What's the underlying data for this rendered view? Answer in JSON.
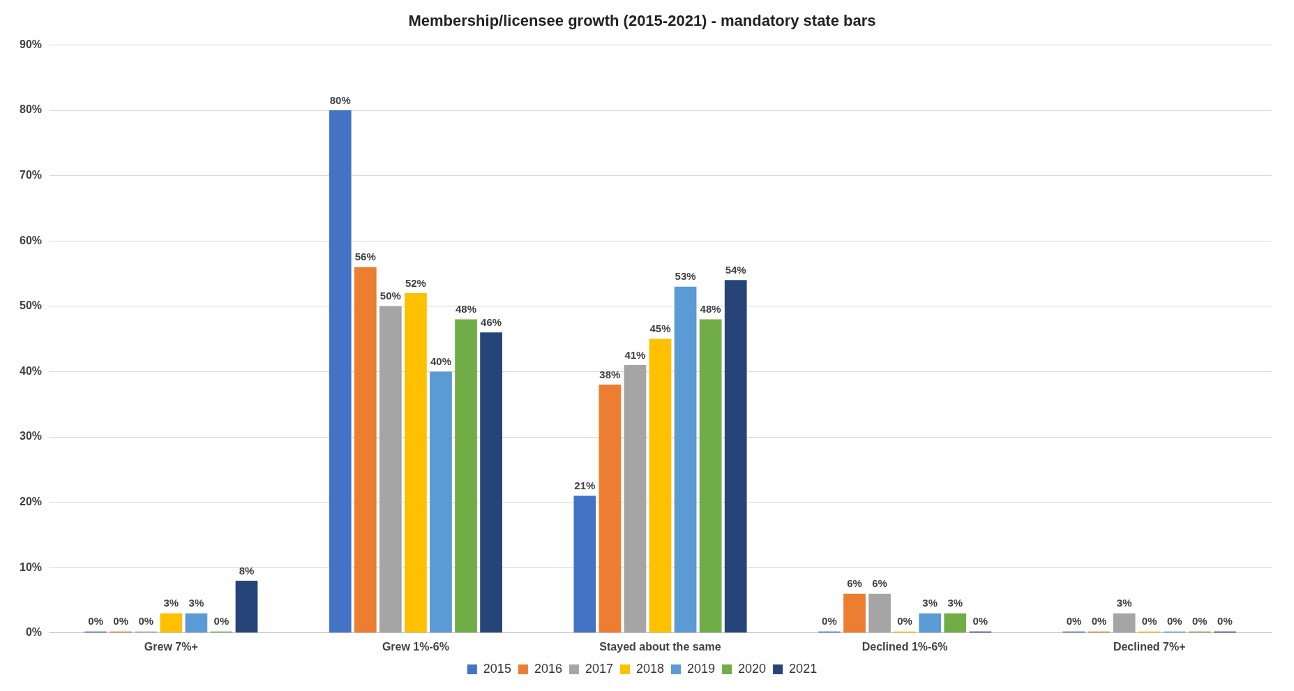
{
  "chart_data": {
    "type": "bar",
    "title": "Membership/licensee growth (2015-2021) - mandatory state bars",
    "categories": [
      "Grew 7%+",
      "Grew 1%-6%",
      "Stayed about the same",
      "Declined 1%-6%",
      "Declined 7%+"
    ],
    "series": [
      {
        "name": "2015",
        "color": "#4472c4",
        "values": [
          0,
          80,
          21,
          0,
          0
        ],
        "value_labels": [
          "0%",
          "80%",
          "21%",
          "0%",
          "0%"
        ]
      },
      {
        "name": "2016",
        "color": "#ed7d31",
        "values": [
          0,
          56,
          38,
          6,
          0
        ],
        "value_labels": [
          "0%",
          "56%",
          "38%",
          "6%",
          "0%"
        ]
      },
      {
        "name": "2017",
        "color": "#a5a5a5",
        "values": [
          0,
          50,
          41,
          6,
          3
        ],
        "value_labels": [
          "0%",
          "50%",
          "41%",
          "6%",
          "3%"
        ]
      },
      {
        "name": "2018",
        "color": "#ffc000",
        "values": [
          3,
          52,
          45,
          0,
          0
        ],
        "value_labels": [
          "3%",
          "52%",
          "45%",
          "0%",
          "0%"
        ]
      },
      {
        "name": "2019",
        "color": "#5b9bd5",
        "values": [
          3,
          40,
          53,
          3,
          0
        ],
        "value_labels": [
          "3%",
          "40%",
          "53%",
          "3%",
          "0%"
        ]
      },
      {
        "name": "2020",
        "color": "#70ad47",
        "values": [
          0,
          48,
          48,
          3,
          0
        ],
        "value_labels": [
          "0%",
          "48%",
          "48%",
          "3%",
          "0%"
        ]
      },
      {
        "name": "2021",
        "color": "#264478",
        "values": [
          8,
          46,
          54,
          0,
          0
        ],
        "value_labels": [
          "8%",
          "46%",
          "54%",
          "0%",
          "0%"
        ]
      }
    ],
    "ylim": [
      0,
      90
    ],
    "yticks": [
      {
        "value": 0,
        "label": "0%"
      },
      {
        "value": 10,
        "label": "10%"
      },
      {
        "value": 20,
        "label": "20%"
      },
      {
        "value": 30,
        "label": "30%"
      },
      {
        "value": 40,
        "label": "40%"
      },
      {
        "value": 50,
        "label": "50%"
      },
      {
        "value": 60,
        "label": "60%"
      },
      {
        "value": 70,
        "label": "70%"
      },
      {
        "value": 80,
        "label": "80%"
      },
      {
        "value": 90,
        "label": "90%"
      }
    ],
    "grid": "y",
    "legend": "bottom"
  }
}
